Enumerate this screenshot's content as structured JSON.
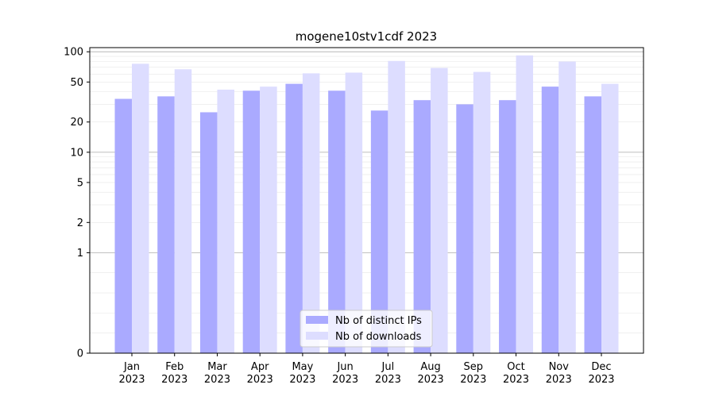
{
  "chart_data": {
    "type": "bar",
    "title": "mogene10stv1cdf 2023",
    "xlabel": "",
    "ylabel": "",
    "y_scale": "symlog",
    "ylim": [
      0,
      110
    ],
    "y_ticks": [
      0,
      1,
      2,
      5,
      10,
      20,
      50,
      100
    ],
    "grid": true,
    "legend_position": "bottom-center",
    "categories": [
      "Jan\n2023",
      "Feb\n2023",
      "Mar\n2023",
      "Apr\n2023",
      "May\n2023",
      "Jun\n2023",
      "Jul\n2023",
      "Aug\n2023",
      "Sep\n2023",
      "Oct\n2023",
      "Nov\n2023",
      "Dec\n2023"
    ],
    "series": [
      {
        "name": "Nb of distinct IPs",
        "color": "#aaaaff",
        "values": [
          34,
          36,
          25,
          41,
          48,
          41,
          26,
          33,
          30,
          33,
          45,
          36
        ]
      },
      {
        "name": "Nb of downloads",
        "color": "#ddddff",
        "values": [
          76,
          67,
          42,
          45,
          61,
          62,
          81,
          69,
          63,
          92,
          80,
          48
        ]
      }
    ]
  }
}
